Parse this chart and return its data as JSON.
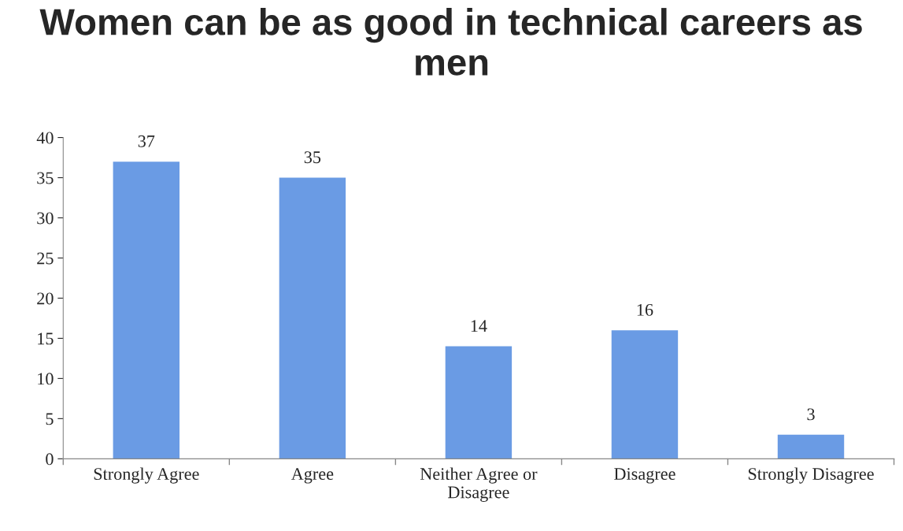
{
  "chart_data": {
    "type": "bar",
    "title": "Women can be as good in technical careers as men",
    "categories": [
      "Strongly Agree",
      "Agree",
      "Neither Agree or Disagree",
      "Disagree",
      "Strongly Disagree"
    ],
    "values": [
      37,
      35,
      14,
      16,
      3
    ],
    "color": "#6a9be4",
    "ylim": [
      0,
      40
    ],
    "yticks": [
      0,
      5,
      10,
      15,
      20,
      25,
      30,
      35,
      40
    ],
    "data_labels": true,
    "grid": false,
    "legend": false
  }
}
